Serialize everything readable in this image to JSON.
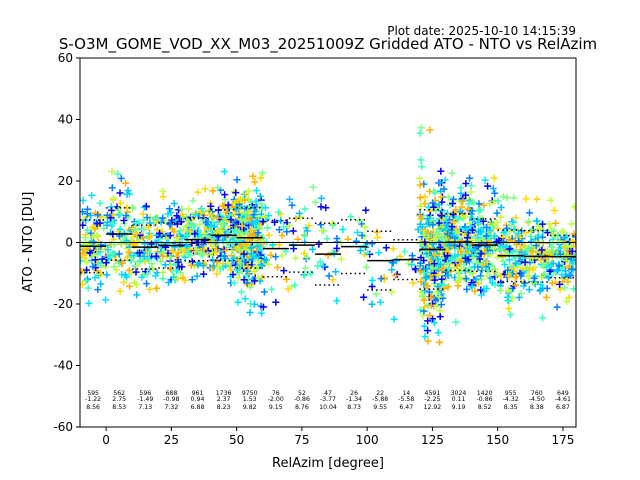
{
  "chart_data": {
    "type": "scatter",
    "plot_date": "Plot date: 2025-10-10 14:15:39",
    "title": "S-O3M_GOME_VOD_XX_M03_20251009Z Gridded ATO - NTO vs RelAzim",
    "xlabel": "RelAzim [degree]",
    "ylabel": "ATO - NTO [DU]",
    "xlim": [
      -10,
      180
    ],
    "ylim": [
      -60,
      60
    ],
    "xticks": [
      0,
      25,
      50,
      75,
      100,
      125,
      150,
      175
    ],
    "yticks": [
      -60,
      -40,
      -20,
      0,
      20,
      40,
      60
    ],
    "zero_line": true,
    "bin_width": 10,
    "bins": [
      {
        "center": -5,
        "count": "595",
        "mean": "-1.22",
        "std": "8.56"
      },
      {
        "center": 5,
        "count": "562",
        "mean": "2.75",
        "std": "8.53"
      },
      {
        "center": 15,
        "count": "596",
        "mean": "-1.49",
        "std": "7.13"
      },
      {
        "center": 25,
        "count": "688",
        "mean": "-0.98",
        "std": "7.32"
      },
      {
        "center": 35,
        "count": "961",
        "mean": "0.94",
        "std": "6.88"
      },
      {
        "center": 45,
        "count": "1736",
        "mean": "2.37",
        "std": "8.23"
      },
      {
        "center": 55,
        "count": "9750",
        "mean": "1.53",
        "std": "9.82"
      },
      {
        "center": 65,
        "count": "76",
        "mean": "-2.00",
        "std": "9.15"
      },
      {
        "center": 75,
        "count": "52",
        "mean": "-0.86",
        "std": "8.76"
      },
      {
        "center": 85,
        "count": "47",
        "mean": "-3.77",
        "std": "10.04"
      },
      {
        "center": 95,
        "count": "26",
        "mean": "-1.34",
        "std": "8.73"
      },
      {
        "center": 105,
        "count": "22",
        "mean": "-5.88",
        "std": "9.55"
      },
      {
        "center": 115,
        "count": "14",
        "mean": "-5.58",
        "std": "6.47"
      },
      {
        "center": 125,
        "count": "4591",
        "mean": "-2.25",
        "std": "12.92"
      },
      {
        "center": 135,
        "count": "3024",
        "mean": "0.11",
        "std": "9.19"
      },
      {
        "center": 145,
        "count": "1420",
        "mean": "-0.86",
        "std": "8.52"
      },
      {
        "center": 155,
        "count": "955",
        "mean": "-4.32",
        "std": "8.35"
      },
      {
        "center": 165,
        "count": "760",
        "mean": "-4.50",
        "std": "8.38"
      },
      {
        "center": 175,
        "count": "649",
        "mean": "-4.61",
        "std": "6.87"
      }
    ],
    "point_colors": [
      "#0000ff",
      "#0080ff",
      "#00bfff",
      "#00e5ff",
      "#40ffbf",
      "#80ff80",
      "#bfff40",
      "#ffd700",
      "#ffb000"
    ]
  }
}
